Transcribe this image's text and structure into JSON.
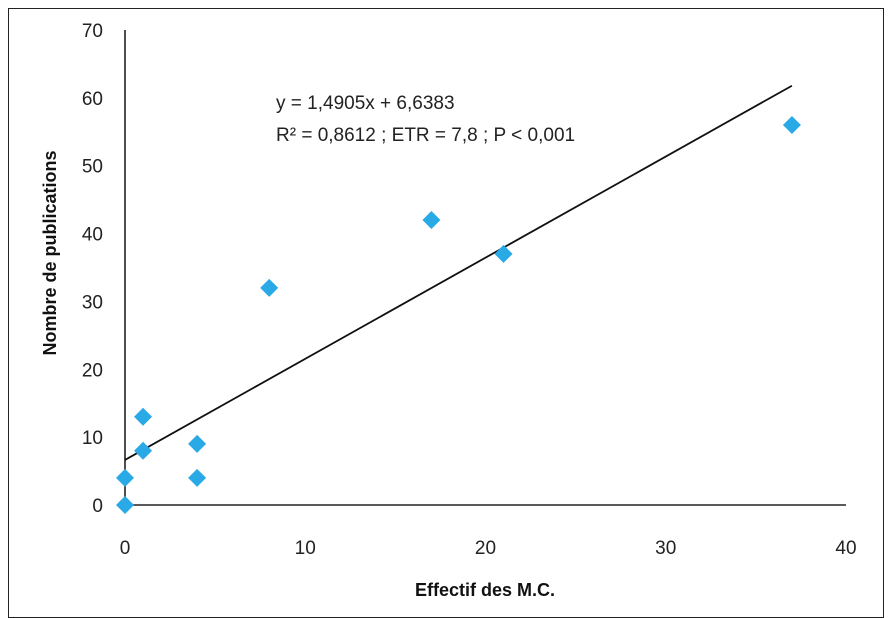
{
  "chart_data": {
    "type": "scatter",
    "title": "",
    "xlabel": "Effectif des M.C.",
    "ylabel": "Nombre de publications",
    "xlim": [
      0,
      40
    ],
    "ylim": [
      0,
      70
    ],
    "x_ticks": [
      0,
      10,
      20,
      30,
      40
    ],
    "y_ticks": [
      0,
      10,
      20,
      30,
      40,
      50,
      60,
      70
    ],
    "grid": false,
    "legend": "none",
    "marker": "diamond",
    "marker_color": "#29A9E6",
    "line_color": "#111111",
    "points": [
      {
        "x": 0,
        "y": 0
      },
      {
        "x": 0,
        "y": 4
      },
      {
        "x": 1,
        "y": 8
      },
      {
        "x": 1,
        "y": 13
      },
      {
        "x": 4,
        "y": 4
      },
      {
        "x": 4,
        "y": 9
      },
      {
        "x": 8,
        "y": 32
      },
      {
        "x": 17,
        "y": 42
      },
      {
        "x": 21,
        "y": 37
      },
      {
        "x": 37,
        "y": 56
      }
    ],
    "trendline": {
      "slope": 1.4905,
      "intercept": 6.6383,
      "x_start": 0,
      "x_end": 37
    },
    "annotations": [
      "y = 1,4905x + 6,6383",
      "R² = 0,8612 ; ETR = 7,8 ; P < 0,001"
    ]
  }
}
